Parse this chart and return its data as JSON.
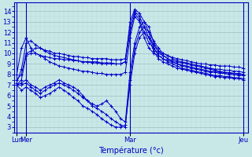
{
  "xlabel": "Température (°c)",
  "bg_color": "#c8e8e8",
  "line_color": "#0000cc",
  "grid_major_color": "#9bbfbf",
  "grid_minor_color": "#b8d8d8",
  "axis_color": "#0000bb",
  "ylim": [
    2.5,
    14.8
  ],
  "yticks": [
    3,
    4,
    5,
    6,
    7,
    8,
    9,
    10,
    11,
    12,
    13,
    14
  ],
  "xtick_labels": [
    "Lun",
    "Mer",
    "Mar",
    "Jeu"
  ],
  "xtick_positions": [
    0,
    2,
    24,
    48
  ],
  "total_points": 49,
  "xlim": [
    -0.5,
    49
  ],
  "series": [
    [
      7.5,
      8.0,
      10.0,
      10.2,
      10.5,
      10.5,
      10.3,
      10.2,
      10.0,
      10.0,
      9.9,
      9.8,
      9.7,
      9.7,
      9.6,
      9.6,
      9.5,
      9.5,
      9.5,
      9.5,
      9.4,
      9.4,
      9.4,
      9.5,
      12.5,
      14.0,
      13.5,
      12.5,
      11.5,
      10.8,
      10.2,
      10.0,
      9.8,
      9.6,
      9.5,
      9.4,
      9.3,
      9.2,
      9.1,
      9.0,
      9.0,
      8.9,
      8.9,
      8.8,
      8.8,
      8.8,
      8.7,
      8.7,
      8.6
    ],
    [
      7.0,
      7.5,
      9.8,
      10.0,
      10.0,
      9.8,
      9.7,
      9.6,
      9.5,
      9.5,
      9.4,
      9.4,
      9.3,
      9.3,
      9.2,
      9.2,
      9.2,
      9.2,
      9.1,
      9.1,
      9.1,
      9.0,
      9.0,
      9.2,
      12.0,
      13.8,
      13.2,
      12.0,
      11.0,
      10.5,
      10.0,
      9.8,
      9.5,
      9.3,
      9.2,
      9.1,
      9.0,
      8.9,
      8.8,
      8.7,
      8.6,
      8.5,
      8.4,
      8.3,
      8.2,
      8.2,
      8.1,
      8.1,
      8.0
    ],
    [
      7.2,
      8.5,
      11.0,
      11.2,
      10.8,
      10.5,
      10.2,
      10.0,
      9.8,
      9.7,
      9.6,
      9.5,
      9.4,
      9.3,
      9.2,
      9.2,
      9.1,
      9.1,
      9.0,
      9.0,
      9.0,
      9.0,
      9.0,
      9.2,
      13.0,
      14.2,
      13.8,
      13.0,
      12.0,
      11.2,
      10.5,
      10.0,
      9.8,
      9.5,
      9.3,
      9.2,
      9.1,
      9.0,
      8.9,
      8.8,
      8.7,
      8.6,
      8.5,
      8.5,
      8.4,
      8.4,
      8.3,
      8.3,
      8.2
    ],
    [
      8.0,
      10.5,
      11.5,
      10.5,
      10.0,
      9.8,
      9.5,
      9.2,
      9.0,
      8.8,
      8.7,
      8.6,
      8.5,
      8.4,
      8.3,
      8.3,
      8.2,
      8.1,
      8.1,
      8.0,
      8.0,
      8.0,
      8.0,
      8.2,
      11.5,
      13.5,
      13.0,
      11.5,
      10.5,
      10.0,
      9.8,
      9.5,
      9.3,
      9.2,
      9.0,
      8.9,
      8.8,
      8.7,
      8.6,
      8.5,
      8.4,
      8.3,
      8.3,
      8.2,
      8.2,
      8.1,
      8.1,
      8.0,
      8.0
    ],
    [
      7.0,
      7.2,
      7.5,
      7.0,
      6.8,
      6.5,
      6.8,
      7.0,
      7.2,
      7.5,
      7.2,
      7.0,
      6.8,
      6.5,
      6.0,
      5.5,
      5.2,
      5.0,
      5.2,
      5.5,
      5.0,
      4.5,
      3.8,
      3.5,
      8.2,
      11.0,
      12.5,
      13.0,
      12.5,
      11.0,
      10.2,
      9.8,
      9.5,
      9.2,
      9.0,
      8.8,
      8.7,
      8.6,
      8.5,
      8.4,
      8.3,
      8.2,
      8.2,
      8.1,
      8.1,
      8.0,
      8.0,
      7.9,
      7.9
    ],
    [
      7.0,
      7.0,
      7.2,
      6.8,
      6.5,
      6.2,
      6.5,
      6.8,
      7.0,
      7.2,
      7.0,
      6.8,
      6.5,
      6.2,
      5.8,
      5.5,
      5.0,
      4.8,
      4.5,
      4.2,
      3.8,
      3.5,
      3.2,
      3.0,
      7.5,
      10.5,
      12.0,
      12.5,
      12.0,
      10.5,
      9.8,
      9.5,
      9.2,
      9.0,
      8.8,
      8.6,
      8.5,
      8.4,
      8.3,
      8.2,
      8.1,
      8.0,
      7.9,
      7.9,
      7.8,
      7.8,
      7.7,
      7.7,
      7.6
    ],
    [
      7.0,
      6.5,
      6.8,
      6.5,
      6.2,
      5.8,
      6.0,
      6.2,
      6.5,
      6.8,
      6.5,
      6.2,
      5.8,
      5.5,
      5.0,
      4.8,
      4.5,
      4.2,
      3.8,
      3.5,
      3.2,
      3.0,
      3.0,
      3.2,
      7.0,
      10.0,
      11.5,
      12.0,
      11.5,
      10.2,
      9.5,
      9.2,
      9.0,
      8.8,
      8.6,
      8.5,
      8.4,
      8.3,
      8.2,
      8.1,
      8.0,
      7.9,
      7.8,
      7.8,
      7.7,
      7.7,
      7.6,
      7.6,
      7.5
    ]
  ]
}
